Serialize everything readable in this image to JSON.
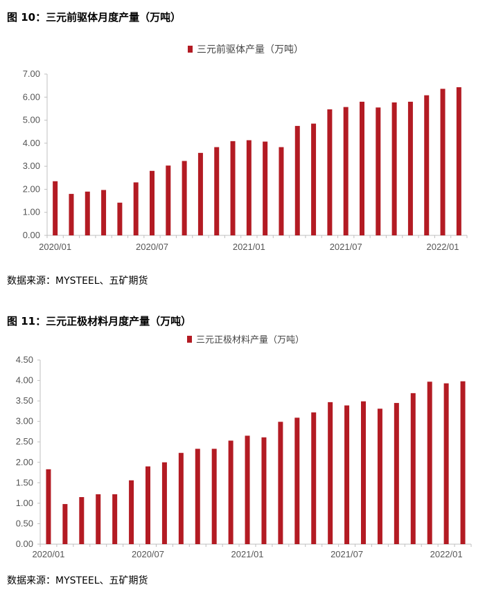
{
  "figure1": {
    "title": "图 10：三元前驱体月度产量（万吨）",
    "source": "数据来源：MYSTEEL、五矿期货"
  },
  "figure2": {
    "title": "图 11：三元正极材料月度产量（万吨）",
    "source": "数据来源：MYSTEEL、五矿期货"
  },
  "colors": {
    "bar": "#b31b23",
    "axis": "#bfbfbf"
  },
  "chart_data": [
    {
      "type": "bar",
      "title": "",
      "xlabel": "",
      "ylabel": "",
      "legend": "top-center",
      "grid": false,
      "x_tick_labels": [
        "2020/01",
        "2020/07",
        "2021/01",
        "2021/07",
        "2022/01"
      ],
      "y_tick_labels": [
        "0.00",
        "1.00",
        "2.00",
        "3.00",
        "4.00",
        "5.00",
        "6.00",
        "7.00"
      ],
      "ylim": [
        0,
        7
      ],
      "categories": [
        "2020/01",
        "2020/02",
        "2020/03",
        "2020/04",
        "2020/05",
        "2020/06",
        "2020/07",
        "2020/08",
        "2020/09",
        "2020/10",
        "2020/11",
        "2020/12",
        "2021/01",
        "2021/02",
        "2021/03",
        "2021/04",
        "2021/05",
        "2021/06",
        "2021/07",
        "2021/08",
        "2021/09",
        "2021/10",
        "2021/11",
        "2021/12",
        "2022/01",
        "2022/02"
      ],
      "series": [
        {
          "name": "三元前驱体产量（万吨）",
          "values": [
            2.35,
            1.8,
            1.9,
            1.97,
            1.42,
            2.3,
            2.8,
            3.03,
            3.23,
            3.58,
            3.83,
            4.09,
            4.13,
            4.07,
            3.83,
            4.75,
            4.85,
            5.47,
            5.57,
            5.8,
            5.55,
            5.77,
            5.8,
            6.08,
            6.36,
            6.43
          ]
        }
      ]
    },
    {
      "type": "bar",
      "title": "",
      "xlabel": "",
      "ylabel": "",
      "legend": "top-center",
      "grid": false,
      "x_tick_labels": [
        "2020/01",
        "2020/07",
        "2021/01",
        "2021/07",
        "2022/01"
      ],
      "y_tick_labels": [
        "0.00",
        "0.50",
        "1.00",
        "1.50",
        "2.00",
        "2.50",
        "3.00",
        "3.50",
        "4.00",
        "4.50"
      ],
      "ylim": [
        0,
        4.5
      ],
      "categories": [
        "2020/01",
        "2020/02",
        "2020/03",
        "2020/04",
        "2020/05",
        "2020/06",
        "2020/07",
        "2020/08",
        "2020/09",
        "2020/10",
        "2020/11",
        "2020/12",
        "2021/01",
        "2021/02",
        "2021/03",
        "2021/04",
        "2021/05",
        "2021/06",
        "2021/07",
        "2021/08",
        "2021/09",
        "2021/10",
        "2021/11",
        "2021/12",
        "2022/01",
        "2022/02"
      ],
      "series": [
        {
          "name": "三元正极材料产量（万吨）",
          "values": [
            1.83,
            0.98,
            1.15,
            1.22,
            1.22,
            1.56,
            1.9,
            2.0,
            2.23,
            2.33,
            2.33,
            2.53,
            2.65,
            2.61,
            2.99,
            3.09,
            3.22,
            3.47,
            3.39,
            3.49,
            3.31,
            3.45,
            3.69,
            3.97,
            3.93,
            3.98
          ]
        }
      ]
    }
  ]
}
